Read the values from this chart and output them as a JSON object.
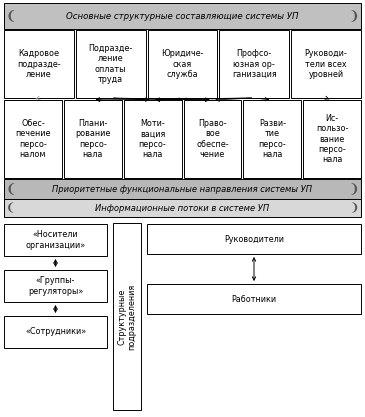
{
  "title": "Основные структурные составляющие системы УП",
  "title2": "Приоритетные функциональные направления системы УП",
  "title3": "Информационные потоки в системе УП",
  "top_boxes": [
    "Кадровое\nподразде-\nление",
    "Подразде-\nление\nоплаты\nтруда",
    "Юридиче-\nская\nслужба",
    "Профсо-\nюзная ор-\nганизация",
    "Руководи-\nтели всех\nуровней"
  ],
  "bottom_boxes": [
    "Обес-\nпечение\nперсо-\nналом",
    "Плани-\nрование\nперсо-\nнала",
    "Моти-\nвация\nперсо-\nнала",
    "Право-\nвое\nобеспе-\nчение",
    "Разви-\nтие\nперсо-\nнала",
    "Ис-\nпользо-\nвание\nперсо-\nнала"
  ],
  "left_boxes": [
    "«Носители\nорганизации»",
    "«Группы-\nрегуляторы»",
    "«Сотрудники»"
  ],
  "right_boxes": [
    "Руководители",
    "Работники"
  ],
  "center_box": "Структурные\nподразделения",
  "font_size": 5.8
}
